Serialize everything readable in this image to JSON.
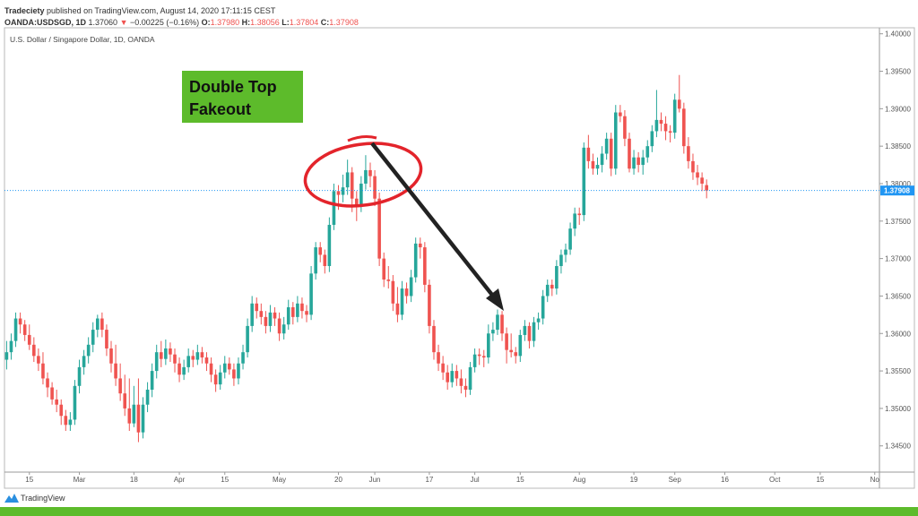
{
  "header": {
    "author": "Tradeciety",
    "published": "published on TradingView.com, August 14, 2020 17:11:15 CEST",
    "symbol": "OANDA:USDSGD, 1D",
    "last": "1.37060",
    "change": "−0.00225 (−0.16%)",
    "o_label": "O:",
    "o": "1.37980",
    "h_label": "H:",
    "h": "1.38056",
    "l_label": "L:",
    "l": "1.37804",
    "c_label": "C:",
    "c": "1.37908",
    "down_icon": "triangle-down-icon"
  },
  "pane_title": "U.S. Dollar / Singapore Dollar, 1D, OANDA",
  "annotation": {
    "line1": "Double Top",
    "line2": "Fakeout",
    "box_color": "#5dbb2b",
    "circle_color": "#e3242b",
    "arrow_color": "#222222"
  },
  "footer": {
    "brand": "TradingView"
  },
  "colors": {
    "up": "#26a69a",
    "down": "#ef5350",
    "price_line": "#2196f3",
    "footer_bar": "#5dbb2b"
  },
  "chart_data": {
    "type": "candlestick",
    "title": "U.S. Dollar / Singapore Dollar, 1D, OANDA",
    "ylim": [
      1.3405,
      1.4005
    ],
    "y_ticks": [
      "1.40000",
      "1.39500",
      "1.39000",
      "1.38500",
      "1.38000",
      "1.37500",
      "1.37000",
      "1.36500",
      "1.36000",
      "1.35500",
      "1.35000",
      "1.34500"
    ],
    "current_price": "1.37908",
    "x_ticks": [
      {
        "label": "15",
        "date": "2020-02-14"
      },
      {
        "label": "Mar",
        "date": "2020-03-02"
      },
      {
        "label": "18",
        "date": "2020-03-18"
      },
      {
        "label": "Apr",
        "date": "2020-04-01"
      },
      {
        "label": "15",
        "date": "2020-04-15"
      },
      {
        "label": "May",
        "date": "2020-05-01"
      },
      {
        "label": "20",
        "date": "2020-05-20"
      },
      {
        "label": "Jun",
        "date": "2020-06-01"
      },
      {
        "label": "17",
        "date": "2020-06-17"
      },
      {
        "label": "Jul",
        "date": "2020-07-01"
      },
      {
        "label": "15",
        "date": "2020-07-15"
      },
      {
        "label": "Aug",
        "date": "2020-08-03"
      },
      {
        "label": "19",
        "date": "2020-08-19"
      },
      {
        "label": "Sep",
        "date": "2020-09-01"
      },
      {
        "label": "16",
        "date": "2020-09-16"
      },
      {
        "label": "Oct",
        "date": "2020-10-01"
      },
      {
        "label": "15",
        "date": "2020-10-15"
      },
      {
        "label": "No",
        "date": "2020-11-02"
      }
    ],
    "first_date": "2020-02-07",
    "ohlc": [
      [
        1.3565,
        1.359,
        1.3552,
        1.3575
      ],
      [
        1.3575,
        1.36,
        1.3565,
        1.359
      ],
      [
        1.359,
        1.3628,
        1.3582,
        1.362
      ],
      [
        1.362,
        1.3628,
        1.36,
        1.3612
      ],
      [
        1.3612,
        1.3618,
        1.359,
        1.3598
      ],
      [
        1.3598,
        1.3612,
        1.3578,
        1.3585
      ],
      [
        1.3585,
        1.3595,
        1.3562,
        1.357
      ],
      [
        1.357,
        1.358,
        1.355,
        1.356
      ],
      [
        1.356,
        1.3575,
        1.3532,
        1.354
      ],
      [
        1.354,
        1.3548,
        1.3515,
        1.3528
      ],
      [
        1.3528,
        1.3535,
        1.3505,
        1.3512
      ],
      [
        1.3512,
        1.3525,
        1.3495,
        1.3505
      ],
      [
        1.3505,
        1.3512,
        1.3478,
        1.349
      ],
      [
        1.349,
        1.3498,
        1.347,
        1.3478
      ],
      [
        1.3478,
        1.3495,
        1.347,
        1.3485
      ],
      [
        1.3485,
        1.3538,
        1.3478,
        1.353
      ],
      [
        1.353,
        1.3565,
        1.352,
        1.3555
      ],
      [
        1.3555,
        1.3578,
        1.3545,
        1.357
      ],
      [
        1.357,
        1.3595,
        1.356,
        1.3585
      ],
      [
        1.3585,
        1.3615,
        1.3575,
        1.3605
      ],
      [
        1.3605,
        1.3625,
        1.3595,
        1.362
      ],
      [
        1.362,
        1.3628,
        1.3595,
        1.3605
      ],
      [
        1.3605,
        1.3612,
        1.357,
        1.358
      ],
      [
        1.358,
        1.359,
        1.3548,
        1.356
      ],
      [
        1.356,
        1.3585,
        1.353,
        1.354
      ],
      [
        1.354,
        1.356,
        1.351,
        1.352
      ],
      [
        1.352,
        1.3545,
        1.349,
        1.35
      ],
      [
        1.35,
        1.354,
        1.347,
        1.348
      ],
      [
        1.348,
        1.353,
        1.3475,
        1.3505
      ],
      [
        1.3505,
        1.354,
        1.3455,
        1.3468
      ],
      [
        1.3468,
        1.3515,
        1.346,
        1.3505
      ],
      [
        1.3505,
        1.3535,
        1.3495,
        1.3525
      ],
      [
        1.3525,
        1.356,
        1.3515,
        1.355
      ],
      [
        1.355,
        1.3585,
        1.354,
        1.3575
      ],
      [
        1.3575,
        1.359,
        1.3555,
        1.3566
      ],
      [
        1.3566,
        1.3592,
        1.3558,
        1.358
      ],
      [
        1.358,
        1.3588,
        1.3562,
        1.3572
      ],
      [
        1.3572,
        1.358,
        1.3548,
        1.356
      ],
      [
        1.356,
        1.3568,
        1.3535,
        1.3545
      ],
      [
        1.3545,
        1.3565,
        1.3538,
        1.3555
      ],
      [
        1.3555,
        1.358,
        1.3548,
        1.357
      ],
      [
        1.357,
        1.3578,
        1.3555,
        1.3565
      ],
      [
        1.3565,
        1.3585,
        1.3558,
        1.3575
      ],
      [
        1.3575,
        1.3582,
        1.356,
        1.3568
      ],
      [
        1.3568,
        1.3575,
        1.355,
        1.356
      ],
      [
        1.356,
        1.3568,
        1.3535,
        1.3545
      ],
      [
        1.3545,
        1.3552,
        1.3522,
        1.3532
      ],
      [
        1.3532,
        1.3558,
        1.3525,
        1.3548
      ],
      [
        1.3548,
        1.357,
        1.354,
        1.356
      ],
      [
        1.356,
        1.3568,
        1.3545,
        1.3552
      ],
      [
        1.3552,
        1.356,
        1.353,
        1.354
      ],
      [
        1.354,
        1.3568,
        1.3532,
        1.356
      ],
      [
        1.356,
        1.3585,
        1.3552,
        1.3575
      ],
      [
        1.3575,
        1.362,
        1.3568,
        1.361
      ],
      [
        1.361,
        1.365,
        1.3602,
        1.364
      ],
      [
        1.364,
        1.3648,
        1.362,
        1.363
      ],
      [
        1.363,
        1.364,
        1.3612,
        1.3622
      ],
      [
        1.3622,
        1.363,
        1.36,
        1.361
      ],
      [
        1.361,
        1.3638,
        1.3602,
        1.3628
      ],
      [
        1.3628,
        1.3635,
        1.361,
        1.362
      ],
      [
        1.362,
        1.3628,
        1.359,
        1.36
      ],
      [
        1.36,
        1.3622,
        1.3592,
        1.3612
      ],
      [
        1.3612,
        1.3645,
        1.3605,
        1.3635
      ],
      [
        1.3635,
        1.3642,
        1.3612,
        1.3622
      ],
      [
        1.3622,
        1.365,
        1.3615,
        1.364
      ],
      [
        1.364,
        1.3648,
        1.362,
        1.363
      ],
      [
        1.363,
        1.3638,
        1.3615,
        1.3625
      ],
      [
        1.3625,
        1.369,
        1.3618,
        1.368
      ],
      [
        1.368,
        1.3722,
        1.3672,
        1.3715
      ],
      [
        1.3715,
        1.3722,
        1.3695,
        1.3705
      ],
      [
        1.3705,
        1.3712,
        1.368,
        1.369
      ],
      [
        1.369,
        1.3755,
        1.3682,
        1.3745
      ],
      [
        1.3745,
        1.38,
        1.3738,
        1.379
      ],
      [
        1.379,
        1.3798,
        1.3765,
        1.3785
      ],
      [
        1.3785,
        1.3812,
        1.3775,
        1.3795
      ],
      [
        1.3795,
        1.3832,
        1.3785,
        1.3815
      ],
      [
        1.3815,
        1.3822,
        1.3762,
        1.378
      ],
      [
        1.378,
        1.379,
        1.375,
        1.377
      ],
      [
        1.377,
        1.381,
        1.3762,
        1.38
      ],
      [
        1.38,
        1.3838,
        1.3792,
        1.3818
      ],
      [
        1.3818,
        1.3828,
        1.3795,
        1.381
      ],
      [
        1.381,
        1.3818,
        1.377,
        1.378
      ],
      [
        1.378,
        1.3788,
        1.369,
        1.37
      ],
      [
        1.37,
        1.3708,
        1.3662,
        1.3672
      ],
      [
        1.3672,
        1.369,
        1.366,
        1.367
      ],
      [
        1.367,
        1.3678,
        1.363,
        1.364
      ],
      [
        1.364,
        1.3662,
        1.3615,
        1.3625
      ],
      [
        1.3625,
        1.367,
        1.3618,
        1.366
      ],
      [
        1.366,
        1.3668,
        1.364,
        1.365
      ],
      [
        1.365,
        1.3685,
        1.3642,
        1.3675
      ],
      [
        1.3675,
        1.3728,
        1.3668,
        1.372
      ],
      [
        1.372,
        1.3728,
        1.37,
        1.3715
      ],
      [
        1.3715,
        1.3722,
        1.3655,
        1.3665
      ],
      [
        1.3665,
        1.3672,
        1.36,
        1.361
      ],
      [
        1.361,
        1.3618,
        1.3565,
        1.3575
      ],
      [
        1.3575,
        1.3585,
        1.355,
        1.356
      ],
      [
        1.356,
        1.357,
        1.3538,
        1.3548
      ],
      [
        1.3548,
        1.3558,
        1.3525,
        1.3535
      ],
      [
        1.3535,
        1.356,
        1.3528,
        1.355
      ],
      [
        1.355,
        1.3558,
        1.353,
        1.354
      ],
      [
        1.354,
        1.3552,
        1.352,
        1.353
      ],
      [
        1.353,
        1.354,
        1.3515,
        1.3525
      ],
      [
        1.3525,
        1.3562,
        1.3518,
        1.3555
      ],
      [
        1.3555,
        1.358,
        1.3548,
        1.3572
      ],
      [
        1.3572,
        1.358,
        1.3558,
        1.357
      ],
      [
        1.357,
        1.3578,
        1.3555,
        1.3568
      ],
      [
        1.3568,
        1.3612,
        1.356,
        1.36
      ],
      [
        1.36,
        1.3615,
        1.359,
        1.3605
      ],
      [
        1.3605,
        1.3632,
        1.3598,
        1.3625
      ],
      [
        1.3625,
        1.363,
        1.359,
        1.36
      ],
      [
        1.36,
        1.3608,
        1.356,
        1.3578
      ],
      [
        1.3578,
        1.36,
        1.3568,
        1.3575
      ],
      [
        1.3575,
        1.3582,
        1.356,
        1.357
      ],
      [
        1.357,
        1.3605,
        1.3562,
        1.3598
      ],
      [
        1.3598,
        1.3618,
        1.359,
        1.361
      ],
      [
        1.361,
        1.3615,
        1.358,
        1.359
      ],
      [
        1.359,
        1.3622,
        1.3582,
        1.3615
      ],
      [
        1.3615,
        1.3628,
        1.3605,
        1.362
      ],
      [
        1.362,
        1.3658,
        1.3612,
        1.365
      ],
      [
        1.365,
        1.3672,
        1.3642,
        1.3665
      ],
      [
        1.3665,
        1.3672,
        1.365,
        1.366
      ],
      [
        1.366,
        1.3698,
        1.3652,
        1.369
      ],
      [
        1.369,
        1.3712,
        1.368,
        1.3705
      ],
      [
        1.3705,
        1.372,
        1.3695,
        1.3712
      ],
      [
        1.3712,
        1.3748,
        1.3705,
        1.374
      ],
      [
        1.374,
        1.3768,
        1.373,
        1.376
      ],
      [
        1.376,
        1.3768,
        1.3745,
        1.3758
      ],
      [
        1.3758,
        1.3855,
        1.375,
        1.3848
      ],
      [
        1.3848,
        1.3865,
        1.382,
        1.383
      ],
      [
        1.383,
        1.384,
        1.3812,
        1.382
      ],
      [
        1.382,
        1.3835,
        1.3812,
        1.3825
      ],
      [
        1.3825,
        1.385,
        1.3815,
        1.384
      ],
      [
        1.384,
        1.3868,
        1.3832,
        1.386
      ],
      [
        1.386,
        1.3868,
        1.381,
        1.382
      ],
      [
        1.382,
        1.3905,
        1.3812,
        1.3895
      ],
      [
        1.3895,
        1.3905,
        1.3882,
        1.389
      ],
      [
        1.389,
        1.3898,
        1.385,
        1.386
      ],
      [
        1.386,
        1.3868,
        1.3815,
        1.382
      ],
      [
        1.382,
        1.3845,
        1.3812,
        1.3835
      ],
      [
        1.3835,
        1.3842,
        1.3815,
        1.3825
      ],
      [
        1.3825,
        1.3845,
        1.3812,
        1.3835
      ],
      [
        1.3835,
        1.3858,
        1.3828,
        1.385
      ],
      [
        1.385,
        1.3878,
        1.3842,
        1.387
      ],
      [
        1.387,
        1.3925,
        1.3862,
        1.3885
      ],
      [
        1.3885,
        1.3895,
        1.387,
        1.388
      ],
      [
        1.388,
        1.389,
        1.3858,
        1.387
      ],
      [
        1.387,
        1.3878,
        1.3855,
        1.3868
      ],
      [
        1.3868,
        1.392,
        1.386,
        1.3912
      ],
      [
        1.3912,
        1.3945,
        1.3895,
        1.39
      ],
      [
        1.39,
        1.3908,
        1.384,
        1.385
      ],
      [
        1.385,
        1.3862,
        1.382,
        1.383
      ],
      [
        1.383,
        1.384,
        1.3805,
        1.3815
      ],
      [
        1.3815,
        1.3825,
        1.3798,
        1.3808
      ],
      [
        1.3808,
        1.3815,
        1.379,
        1.38
      ],
      [
        1.3798,
        1.38056,
        1.37804,
        1.37908
      ]
    ]
  }
}
